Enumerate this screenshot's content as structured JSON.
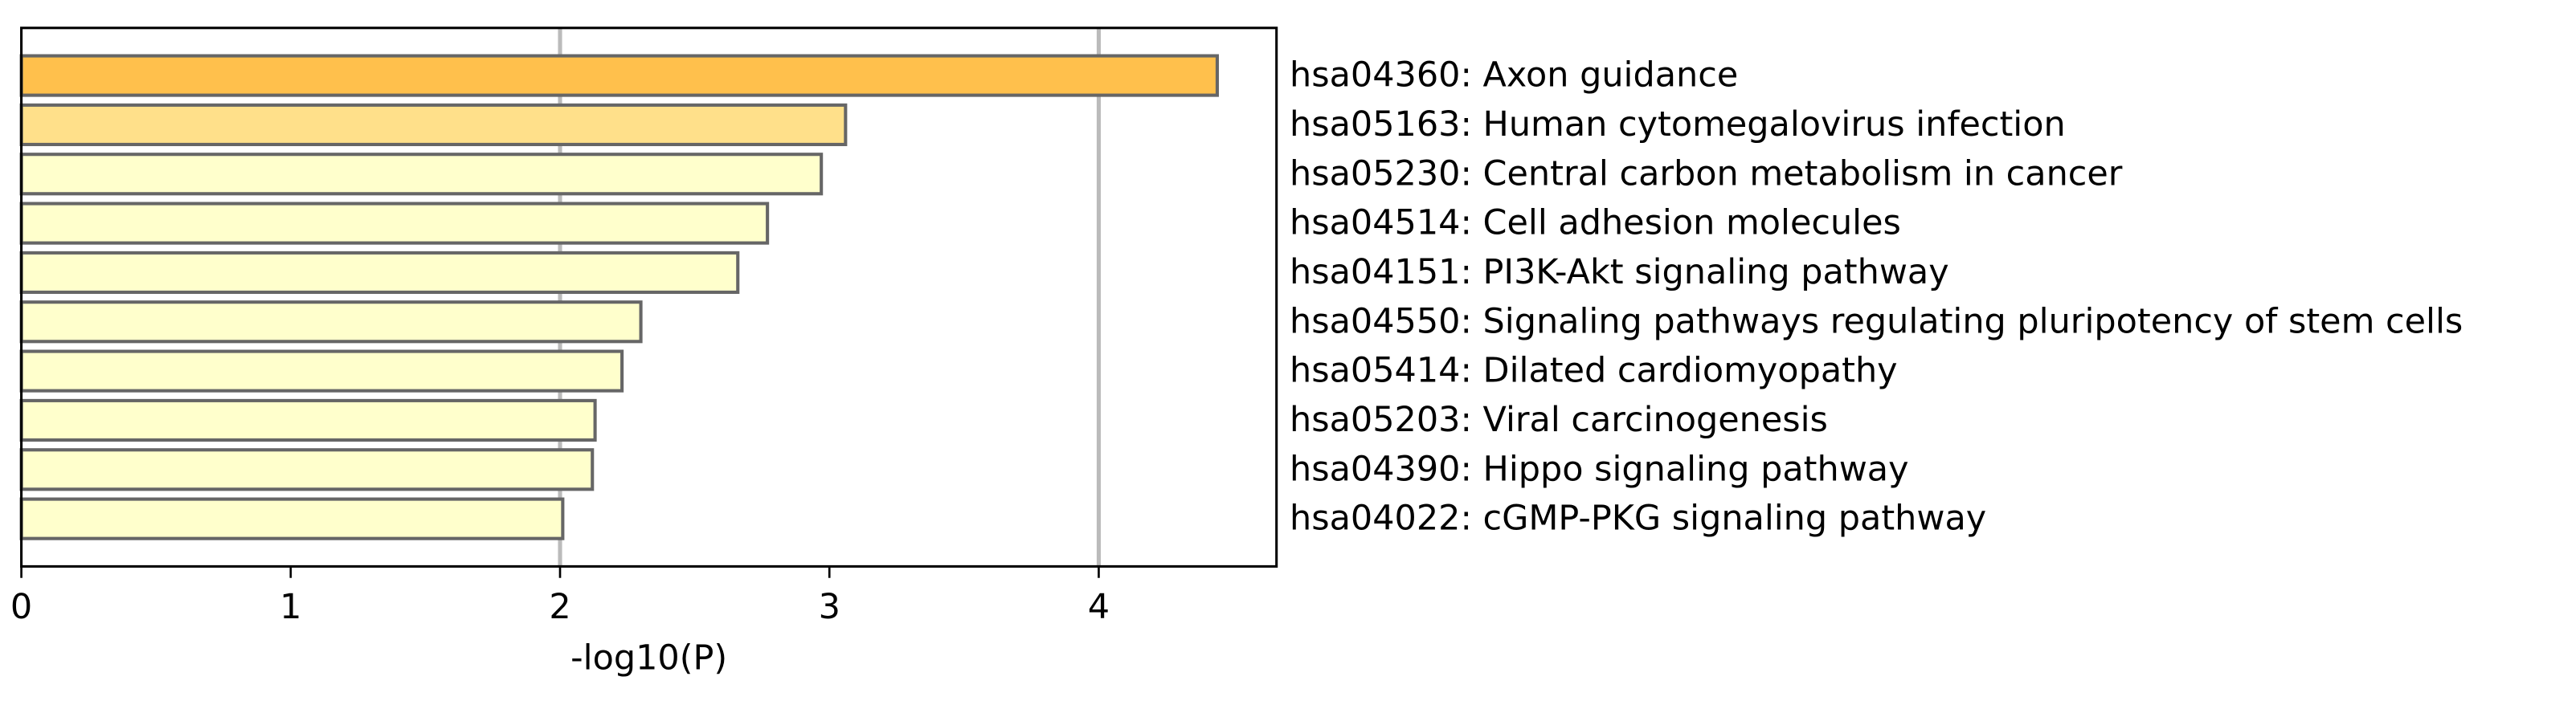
{
  "chart_data": {
    "type": "barh",
    "xlabel": "-log10(P)",
    "categories": [
      "hsa04360: Axon guidance",
      "hsa05163: Human cytomegalovirus infection",
      "hsa05230: Central carbon metabolism in cancer",
      "hsa04514: Cell adhesion molecules",
      "hsa04151: PI3K-Akt signaling pathway",
      "hsa04550: Signaling pathways regulating pluripotency of stem cells",
      "hsa05414: Dilated cardiomyopathy",
      "hsa05203: Viral carcinogenesis",
      "hsa04390: Hippo signaling pathway",
      "hsa04022: cGMP-PKG signaling pathway"
    ],
    "values": [
      4.44,
      3.06,
      2.97,
      2.77,
      2.66,
      2.3,
      2.23,
      2.13,
      2.12,
      2.01
    ],
    "colors": [
      "#ffc04c",
      "#ffe08a",
      "#ffffcc",
      "#ffffcc",
      "#ffffcc",
      "#ffffcc",
      "#ffffcc",
      "#ffffcc",
      "#ffffcc",
      "#ffffcc"
    ],
    "xlim": [
      0,
      4.66
    ],
    "xticks": [
      0,
      1,
      2,
      3,
      4
    ],
    "grid_values": [
      2,
      4
    ]
  }
}
